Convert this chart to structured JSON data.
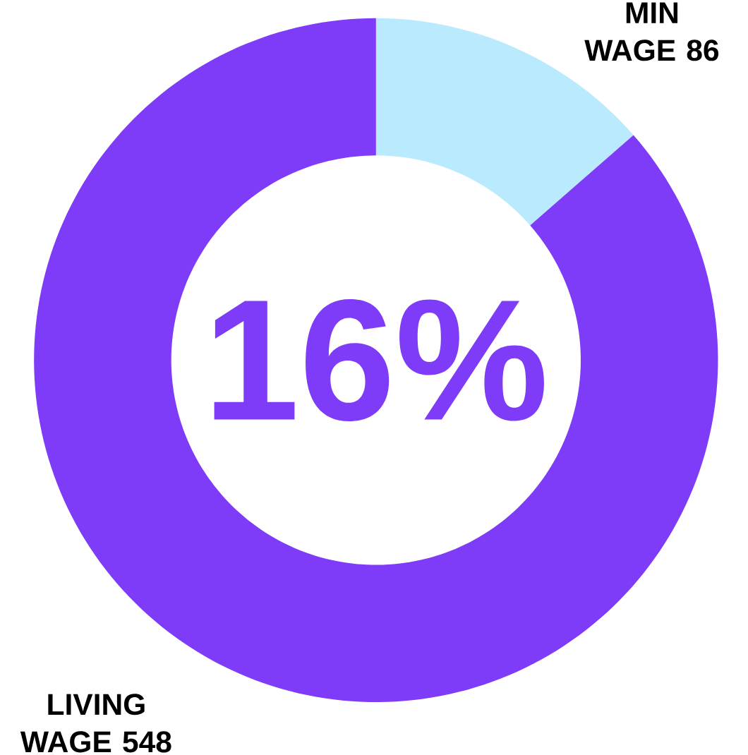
{
  "chart_data": {
    "type": "donut",
    "categories": [
      "MIN WAGE",
      "LIVING WAGE"
    ],
    "values": [
      86,
      548
    ],
    "value_labels": [
      "86",
      "548"
    ],
    "colors": [
      "#b9eafd",
      "#7f3cf8"
    ],
    "annotations": [
      "16%"
    ]
  }
}
